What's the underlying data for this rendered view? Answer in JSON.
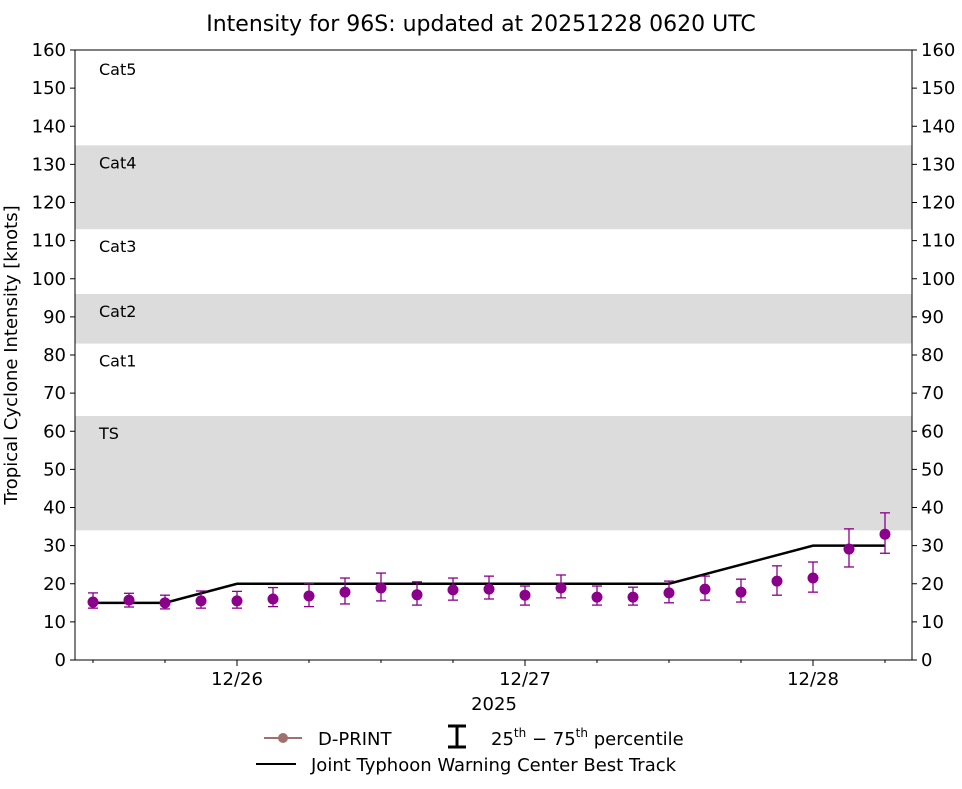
{
  "chart_data": {
    "type": "scatter",
    "title": "Intensity for 96S: updated at 20251228 0620 UTC",
    "ylabel": "Tropical Cyclone Intensity [knots]",
    "xlabel": "2025",
    "ylim": [
      0,
      160
    ],
    "yticks": [
      0,
      10,
      20,
      30,
      40,
      50,
      60,
      70,
      80,
      90,
      100,
      110,
      120,
      130,
      140,
      150,
      160
    ],
    "xlim": [
      "2025-12-25T10:30",
      "2025-12-28T08:15"
    ],
    "xticks": [
      {
        "t": "2025-12-26T00:00",
        "label": "12/26"
      },
      {
        "t": "2025-12-27T00:00",
        "label": "12/27"
      },
      {
        "t": "2025-12-28T00:00",
        "label": "12/28"
      }
    ],
    "grid": false,
    "category_bands": [
      {
        "label": "TS",
        "range": [
          34,
          64
        ],
        "shaded": true
      },
      {
        "label": "Cat1",
        "range": [
          64,
          83
        ],
        "shaded": false
      },
      {
        "label": "Cat2",
        "range": [
          83,
          96
        ],
        "shaded": true
      },
      {
        "label": "Cat3",
        "range": [
          96,
          113
        ],
        "shaded": false
      },
      {
        "label": "Cat4",
        "range": [
          113,
          135
        ],
        "shaded": true
      },
      {
        "label": "Cat5",
        "range": [
          135,
          160
        ],
        "shaded": false
      }
    ],
    "series": [
      {
        "name": "D-PRINT",
        "color": "#8b008b",
        "legend_color": "#a07070",
        "x": [
          "2025-12-25T12:00",
          "2025-12-25T15:00",
          "2025-12-25T18:00",
          "2025-12-25T21:00",
          "2025-12-26T00:00",
          "2025-12-26T03:00",
          "2025-12-26T06:00",
          "2025-12-26T09:00",
          "2025-12-26T12:00",
          "2025-12-26T15:00",
          "2025-12-26T18:00",
          "2025-12-26T21:00",
          "2025-12-27T00:00",
          "2025-12-27T03:00",
          "2025-12-27T06:00",
          "2025-12-27T09:00",
          "2025-12-27T12:00",
          "2025-12-27T15:00",
          "2025-12-27T18:00",
          "2025-12-27T21:00",
          "2025-12-28T00:00",
          "2025-12-28T03:00",
          "2025-12-28T06:00"
        ],
        "y": [
          15.2,
          15.7,
          15.0,
          15.5,
          15.5,
          16.0,
          16.8,
          17.8,
          18.9,
          17.1,
          18.4,
          18.6,
          17.0,
          18.9,
          16.5,
          16.5,
          17.6,
          18.6,
          17.8,
          20.7,
          21.5,
          29.1,
          33.0
        ],
        "p25": [
          13.6,
          13.9,
          13.4,
          13.6,
          13.6,
          14.0,
          14.0,
          14.7,
          15.5,
          14.4,
          15.7,
          16.0,
          14.4,
          16.3,
          14.4,
          14.4,
          15.0,
          15.7,
          15.2,
          17.0,
          17.8,
          24.4,
          28.0
        ],
        "p75": [
          17.6,
          17.5,
          17.0,
          18.1,
          18.0,
          19.0,
          20.0,
          21.5,
          22.8,
          20.5,
          21.5,
          22.0,
          19.4,
          22.3,
          19.4,
          19.1,
          20.7,
          22.0,
          21.2,
          24.7,
          25.7,
          34.4,
          38.6
        ]
      },
      {
        "name": "Joint Typhoon Warning Center Best Track",
        "color": "#000000",
        "x": [
          "2025-12-25T12:00",
          "2025-12-25T18:00",
          "2025-12-26T00:00",
          "2025-12-26T06:00",
          "2025-12-26T12:00",
          "2025-12-26T18:00",
          "2025-12-27T00:00",
          "2025-12-27T06:00",
          "2025-12-27T12:00",
          "2025-12-27T18:00",
          "2025-12-28T00:00",
          "2025-12-28T06:00"
        ],
        "y": [
          15,
          15,
          20,
          20,
          20,
          20,
          20,
          20,
          20,
          25,
          30,
          30
        ]
      }
    ],
    "legend": {
      "placement": "bottom",
      "dprint": "D-PRINT",
      "percentile_base": "25",
      "percentile_sup1": "th",
      "percentile_mid": " − 75",
      "percentile_sup2": "th",
      "percentile_tail": " percentile",
      "best_track": "Joint Typhoon Warning Center Best Track"
    }
  }
}
